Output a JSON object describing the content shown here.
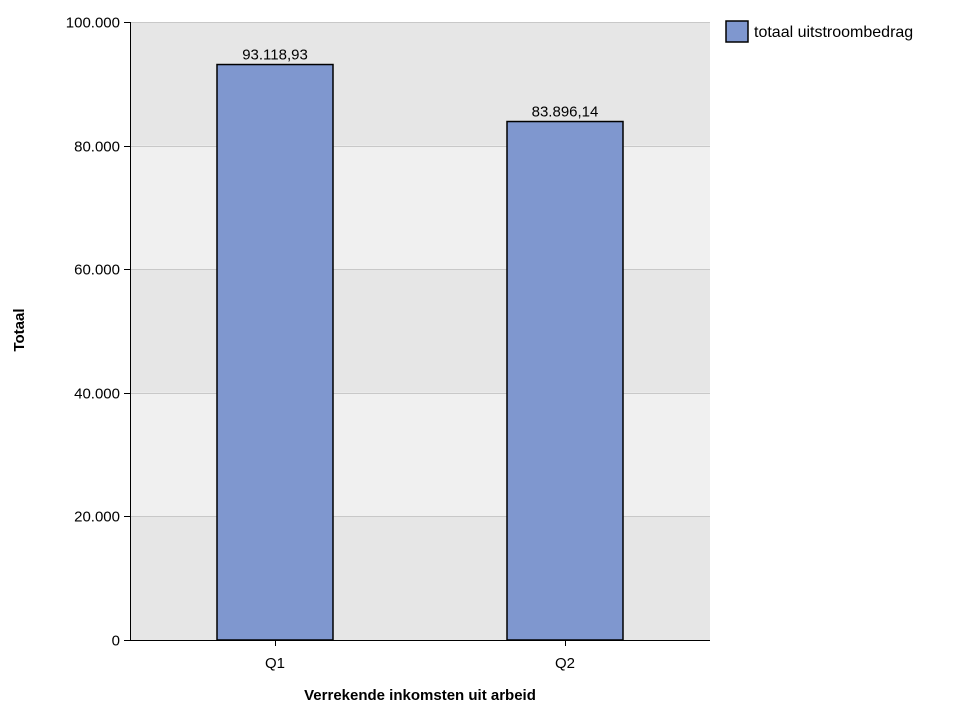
{
  "chart_data": {
    "type": "bar",
    "categories": [
      "Q1",
      "Q2"
    ],
    "series": [
      {
        "name": "totaal uitstroombedrag",
        "values": [
          93118.93,
          83896.14
        ],
        "value_labels": [
          "93.118,93",
          "83.896,14"
        ],
        "color": "#7f97cf"
      }
    ],
    "xlabel": "Verrekende inkomsten uit arbeid",
    "ylabel": "Totaal",
    "ylim": [
      0,
      100000
    ],
    "yticks": [
      0,
      20000,
      40000,
      60000,
      80000,
      100000
    ],
    "ytick_labels": [
      "0",
      "20.000",
      "40.000",
      "60.000",
      "80.000",
      "100.000"
    ],
    "grid": true,
    "legend_position": "top-right",
    "colors": {
      "plot_band_dark": "#e6e6e6",
      "plot_band_light": "#f0f0f0",
      "gridline": "#c8c8c8",
      "bar_edge": "#000000"
    }
  }
}
